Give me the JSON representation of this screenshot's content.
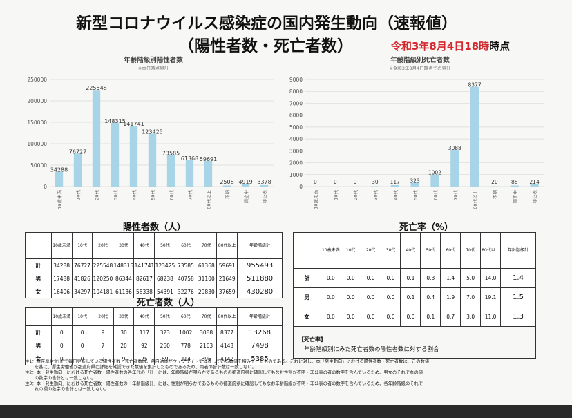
{
  "header": {
    "title_line1": "新型コロナウイルス感染症の国内発生動向（速報値）",
    "title_line2": "（陽性者数・死亡者数）",
    "as_of_date": "令和3年8月4日18時",
    "as_of_suffix": "時点",
    "accent_color": "#d4272e"
  },
  "colors": {
    "bar": "#a8d4e8",
    "grid": "#d8d8d8"
  },
  "chart_data": [
    {
      "type": "bar",
      "title": "年齢階級別陽性者数",
      "subtitle": "※本日時点累計",
      "categories": [
        "10歳未満",
        "10代",
        "20代",
        "30代",
        "40代",
        "50代",
        "60代",
        "70代",
        "80代以上",
        "不明",
        "調査中",
        "非公表"
      ],
      "values": [
        34288,
        76727,
        225548,
        148315,
        141741,
        123425,
        73585,
        61368,
        59691,
        2508,
        4919,
        3378
      ],
      "labels": [
        "34288",
        "76727",
        "225548",
        "148315",
        "141741",
        "123425",
        "73585",
        "61368",
        "59691",
        "2508",
        "4919",
        "3378"
      ],
      "yticks": [
        "0",
        "50000",
        "100000",
        "150000",
        "200000",
        "250000"
      ],
      "ylim": [
        0,
        250000
      ],
      "grid": true
    },
    {
      "type": "bar",
      "title": "年齢階級別死亡者数",
      "subtitle": "※令和3年8月4日時点での累計",
      "categories": [
        "10歳未満",
        "10代",
        "20代",
        "30代",
        "40代",
        "50代",
        "60代",
        "70代",
        "80代以上",
        "不明",
        "調査中",
        "非公表"
      ],
      "values": [
        0,
        0,
        9,
        30,
        117,
        323,
        1002,
        3088,
        8377,
        20,
        88,
        214
      ],
      "labels": [
        "0",
        "0",
        "9",
        "30",
        "117",
        "323",
        "1002",
        "3088",
        "8377",
        "20",
        "88",
        "214"
      ],
      "yticks": [
        "0",
        "1000",
        "2000",
        "3000",
        "4000",
        "5000",
        "6000",
        "7000",
        "8000",
        "9000"
      ],
      "ylim": [
        0,
        9000
      ],
      "grid": true
    }
  ],
  "positives": {
    "heading": "陽性者数（人）",
    "headers": [
      "10歳未満",
      "10代",
      "20代",
      "30代",
      "40代",
      "50代",
      "60代",
      "70代",
      "80代以上",
      "年齢階級計"
    ],
    "rows": [
      {
        "label": "計",
        "values": [
          "34288",
          "76727",
          "225548",
          "148315",
          "141741",
          "123425",
          "73585",
          "61368",
          "59691"
        ],
        "total": "955493"
      },
      {
        "label": "男",
        "values": [
          "17488",
          "41826",
          "120250",
          "86344",
          "82617",
          "68238",
          "40758",
          "31100",
          "21649"
        ],
        "total": "511880"
      },
      {
        "label": "女",
        "values": [
          "16406",
          "34297",
          "104181",
          "61136",
          "58338",
          "54391",
          "32276",
          "29830",
          "37659"
        ],
        "total": "430280"
      }
    ]
  },
  "deaths": {
    "heading": "死亡者数（人）",
    "headers": [
      "10歳未満",
      "10代",
      "20代",
      "30代",
      "40代",
      "50代",
      "60代",
      "70代",
      "80代以上",
      "年齢階級計"
    ],
    "rows": [
      {
        "label": "計",
        "values": [
          "0",
          "0",
          "9",
          "30",
          "117",
          "323",
          "1002",
          "3088",
          "8377"
        ],
        "total": "13268"
      },
      {
        "label": "男",
        "values": [
          "0",
          "0",
          "7",
          "20",
          "92",
          "260",
          "778",
          "2163",
          "4143"
        ],
        "total": "7498"
      },
      {
        "label": "女",
        "values": [
          "0",
          "0",
          "2",
          "9",
          "25",
          "59",
          "214",
          "896",
          "4142"
        ],
        "total": "5385"
      }
    ]
  },
  "mortality": {
    "heading": "死亡率（%）",
    "headers": [
      "10歳未満",
      "10代",
      "20代",
      "30代",
      "40代",
      "50代",
      "60代",
      "70代",
      "80代以上",
      "年齢階級計"
    ],
    "rows": [
      {
        "label": "計",
        "values": [
          "0.0",
          "0.0",
          "0.0",
          "0.0",
          "0.1",
          "0.3",
          "1.4",
          "5.0",
          "14.0"
        ],
        "total": "1.4"
      },
      {
        "label": "男",
        "values": [
          "0.0",
          "0.0",
          "0.0",
          "0.0",
          "0.1",
          "0.4",
          "1.9",
          "7.0",
          "19.1"
        ],
        "total": "1.5"
      },
      {
        "label": "女",
        "values": [
          "0.0",
          "0.0",
          "0.0",
          "0.0",
          "0.0",
          "0.1",
          "0.7",
          "3.0",
          "11.0"
        ],
        "total": "1.3"
      }
    ],
    "definition_label": "【死亡率】",
    "definition_text": "年齢階級別にみた死亡者数の陽性者数に対する割合"
  },
  "notes": [
    "注1：現在厚労省HPで毎日更新している陽性者数・死亡者数は、各自治体がウェブサイトで公表している数値を積み上げたものである。これに対し、本「発生動向」における陽性者数・死亡者数は、この数値",
    "を基に、厚生労働省が都道府県に詳細を確認できた数値を集計したものであるため、両者の合計数は一致しない。",
    "注2：本「発生動向」における死亡者数・陽性者数の各年代の「計」には、年齢階級が明らかであるものの都道府県に確認してもなお性別が不明・非公表の者の数字を含んでいるため、男女のそれぞれの値",
    "の数字の合計とは一致しない。",
    "注3：本「発生動向」における死亡者数・陽性者数の「年齢階級計」には、性別が明らかであるものの都道府県に確認してもなお年齢階級が不明・非公表の者の数字を含んでいるため、各年齢階級のそれぞ",
    "れの欄の数字の合計とは一致しない。"
  ]
}
